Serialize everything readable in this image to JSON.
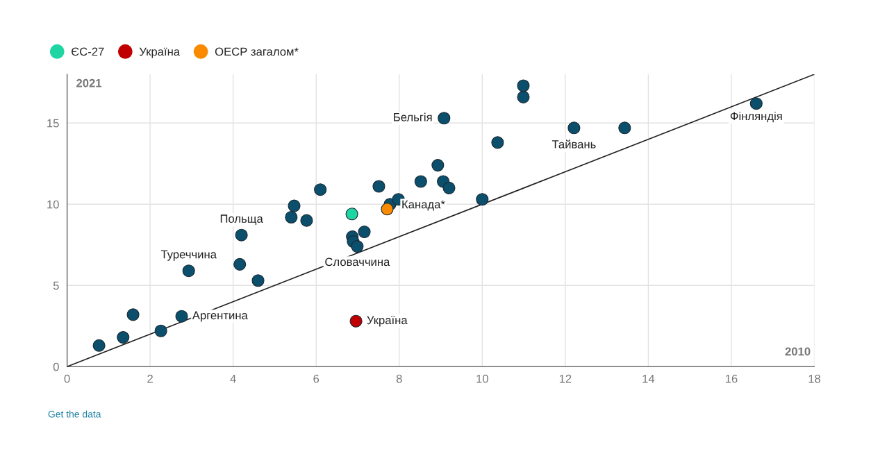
{
  "chart_data": {
    "type": "scatter",
    "xlabel": "2010",
    "ylabel": "2021",
    "xlim": [
      0,
      18
    ],
    "xticks": [
      0,
      2,
      4,
      6,
      8,
      10,
      12,
      14,
      16,
      18
    ],
    "ylim": [
      0,
      18
    ],
    "yticks": [
      0,
      5,
      10,
      15
    ],
    "grid": true,
    "legend": "top left",
    "marker": "circle",
    "series": [
      {
        "color": "#0b4f6c",
        "x": [
          0.77,
          1.35,
          1.59,
          2.26,
          2.76,
          2.93,
          4.16,
          4.2,
          4.6,
          5.4,
          5.47,
          5.77,
          6.1,
          6.87,
          6.89,
          6.99,
          7.16,
          7.51,
          7.78,
          7.98,
          8.52,
          8.93,
          9.06,
          9.2,
          9.08,
          10.0,
          10.37,
          10.99,
          10.99,
          12.21,
          13.43,
          16.6
        ],
        "values": [
          1.3,
          1.8,
          3.2,
          2.2,
          3.1,
          5.9,
          6.3,
          8.1,
          5.3,
          9.2,
          9.9,
          9.0,
          10.9,
          8.0,
          7.7,
          7.4,
          8.3,
          11.1,
          10.0,
          10.3,
          11.4,
          12.4,
          11.4,
          11.0,
          15.3,
          10.3,
          13.8,
          16.6,
          17.3,
          14.7,
          14.7,
          16.2
        ]
      },
      {
        "name": "ЄС-27",
        "color": "#1fd6a3",
        "x": [
          6.86
        ],
        "values": [
          9.4
        ]
      },
      {
        "name": "Україна",
        "color": "#c00000",
        "x": [
          6.96
        ],
        "values": [
          2.8
        ]
      },
      {
        "name": "ОЕСР загалом*",
        "color": "#fa8a00",
        "x": [
          7.71
        ],
        "values": [
          9.7
        ]
      },
      {
        "type": "line",
        "marker": "none",
        "color": "#222222",
        "x": [
          0,
          18
        ],
        "values": [
          0,
          18
        ]
      }
    ],
    "annotations": [
      {
        "text": "Бельгія",
        "x": 9.08,
        "y": 15.3
      },
      {
        "text": "Фінляндія",
        "x": 16.6,
        "y": 16.2
      },
      {
        "text": "Тайвань",
        "x": 12.21,
        "y": 14.7
      },
      {
        "text": "Канада*",
        "x": 9.2,
        "y": 11.0
      },
      {
        "text": "Польща",
        "x": 4.2,
        "y": 8.1
      },
      {
        "text": "Туреччина",
        "x": 2.93,
        "y": 5.9
      },
      {
        "text": "Словаччина",
        "x": 6.99,
        "y": 7.4
      },
      {
        "text": "Аргентина",
        "x": 2.76,
        "y": 3.1
      },
      {
        "text": "Україна",
        "x": 6.96,
        "y": 2.8
      },
      "Get the data"
    ]
  }
}
